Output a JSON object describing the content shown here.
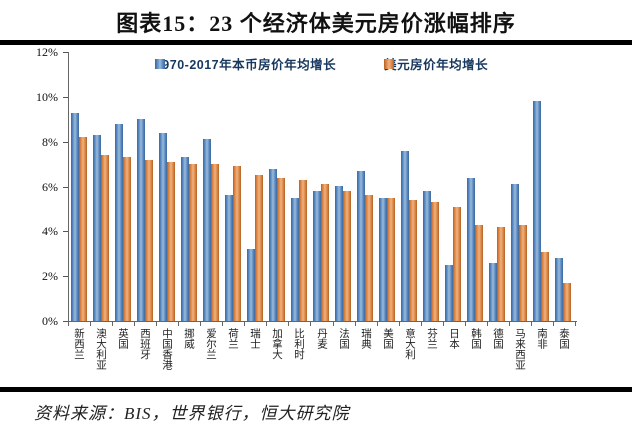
{
  "page": {
    "title": "图表15：23 个经济体美元房价涨幅排序",
    "source": "资料来源：BIS，世界银行，恒大研究院"
  },
  "colors": {
    "series1": "#4f81bd",
    "series2": "#d77e3c",
    "legend_text": "#17375e",
    "axis": "#666666"
  },
  "chart_data": {
    "type": "bar",
    "title": "图表15：23 个经济体美元房价涨幅排序",
    "categories": [
      "新西兰",
      "澳大利亚",
      "英国",
      "西班牙",
      "中国香港",
      "挪威",
      "爱尔兰",
      "荷兰",
      "瑞士",
      "加拿大",
      "比利时",
      "丹麦",
      "法国",
      "瑞典",
      "美国",
      "意大利",
      "芬兰",
      "日本",
      "韩国",
      "德国",
      "马来西亚",
      "南非",
      "泰国"
    ],
    "series": [
      {
        "name": "1970-2017年本币房价年均增长",
        "color": "#4f81bd",
        "values": [
          9.3,
          8.3,
          8.8,
          9.0,
          8.4,
          7.3,
          8.1,
          5.6,
          3.2,
          6.8,
          5.5,
          5.8,
          6.0,
          6.7,
          5.5,
          7.6,
          5.8,
          2.5,
          6.4,
          2.6,
          6.1,
          9.8,
          2.8
        ]
      },
      {
        "name": "美元房价年均增长",
        "color": "#d77e3c",
        "values": [
          8.2,
          7.4,
          7.3,
          7.2,
          7.1,
          7.0,
          7.0,
          6.9,
          6.5,
          6.4,
          6.3,
          6.1,
          5.8,
          5.6,
          5.5,
          5.4,
          5.3,
          5.1,
          4.3,
          4.2,
          4.3,
          3.1,
          1.7
        ]
      }
    ],
    "xlabel": "",
    "ylabel": "",
    "ylim": [
      0,
      12
    ],
    "ytick_step": 2,
    "ytick_labels": [
      "0%",
      "2%",
      "4%",
      "6%",
      "8%",
      "10%",
      "12%"
    ],
    "grid": false,
    "legend_position": "top-center"
  }
}
